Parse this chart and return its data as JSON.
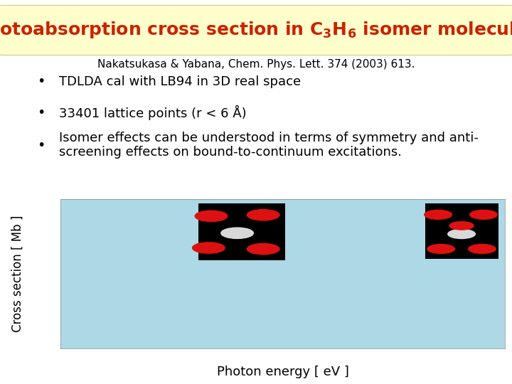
{
  "title_text": "Photoabsorption cross section in C",
  "title_sub1": "3",
  "title_mid": "H",
  "title_sub2": "6",
  "title_end": " isomer molecules",
  "title_color": "#cc2200",
  "title_bg": "#ffffcc",
  "reference": "Nakatsukasa & Yabana, Chem. Phys. Lett. 374 (2003) 613.",
  "bullets": [
    "TDLDA cal with LB94 in 3D real space",
    "33401 lattice points (r < 6 Å)",
    "Isomer effects can be understood in terms of symmetry and anti-\nscreening effects on bound-to-continuum excitations."
  ],
  "plot_bg": "#add8e6",
  "outer_bg": "#ffffff",
  "ylabel": "Cross section [ Mb ]",
  "xlabel": "Photon energy [ eV ]",
  "ylabel_fontsize": 12,
  "xlabel_fontsize": 13,
  "bullet_fontsize": 13,
  "ref_fontsize": 11,
  "title_fontsize": 18
}
